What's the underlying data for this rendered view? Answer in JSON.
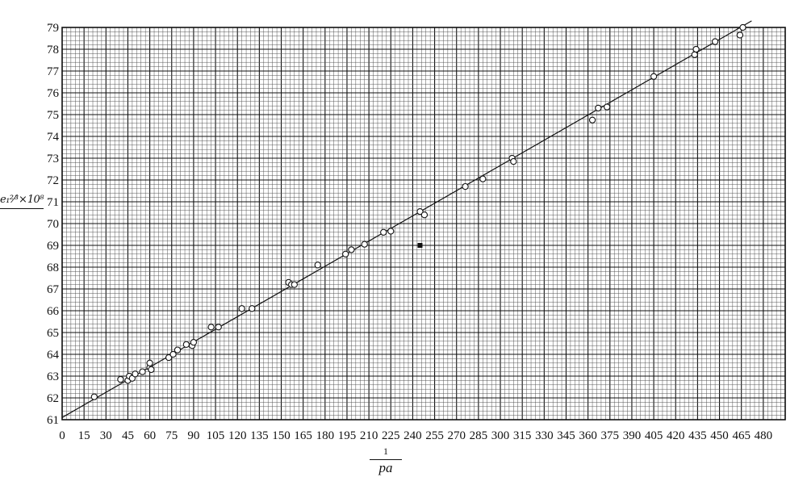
{
  "chart_data": {
    "type": "scatter",
    "title": "",
    "xlabel": {
      "numerator": "1",
      "denominator": "pa"
    },
    "ylabel": "e₁²⁄³ × 10⁸",
    "xlim": [
      0,
      495
    ],
    "ylim": [
      61,
      79
    ],
    "x_ticks": [
      "0",
      "15",
      "30",
      "45",
      "60",
      "75",
      "90",
      "105",
      "120",
      "135",
      "150",
      "165",
      "180",
      "195",
      "210",
      "225",
      "240",
      "255",
      "270",
      "285",
      "300",
      "315",
      "330",
      "345",
      "360",
      "375",
      "390",
      "405",
      "420",
      "435",
      "450",
      "465",
      "480"
    ],
    "y_ticks": [
      "61",
      "62",
      "63",
      "64",
      "65",
      "66",
      "67",
      "68",
      "69",
      "70",
      "71",
      "72",
      "73",
      "74",
      "75",
      "76",
      "77",
      "78",
      "79"
    ],
    "grid": true,
    "minor_grid": {
      "x_step": 3,
      "y_step": 0.2
    },
    "major_grid": {
      "x_step": 15,
      "y_step": 1
    },
    "fit_line": {
      "from": [
        0,
        61.1
      ],
      "to": [
        472,
        79.3
      ]
    },
    "series": [
      {
        "marker": "circle",
        "points": [
          [
            22,
            62.05
          ],
          [
            40,
            62.85
          ],
          [
            45,
            62.8
          ],
          [
            46,
            63.0
          ],
          [
            48,
            62.9
          ],
          [
            50,
            63.1
          ],
          [
            55,
            63.2
          ],
          [
            60,
            63.4
          ],
          [
            60,
            63.6
          ],
          [
            61,
            63.3
          ],
          [
            73,
            63.85
          ],
          [
            76,
            64.0
          ],
          [
            79,
            64.2
          ],
          [
            85,
            64.45
          ],
          [
            89,
            64.4
          ],
          [
            90,
            64.55
          ],
          [
            102,
            65.25
          ],
          [
            107,
            65.25
          ],
          [
            123,
            66.1
          ],
          [
            130,
            66.1
          ],
          [
            155,
            67.3
          ],
          [
            157,
            67.2
          ],
          [
            159,
            67.2
          ],
          [
            175,
            68.1
          ],
          [
            194,
            68.6
          ],
          [
            198,
            68.8
          ],
          [
            207,
            69.05
          ],
          [
            220,
            69.6
          ],
          [
            225,
            69.65
          ],
          [
            245,
            70.55
          ],
          [
            248,
            70.4
          ],
          [
            276,
            71.7
          ],
          [
            288,
            72.05
          ],
          [
            308,
            73.0
          ],
          [
            309,
            72.85
          ],
          [
            363,
            74.75
          ],
          [
            367,
            75.3
          ],
          [
            373,
            75.35
          ],
          [
            405,
            76.75
          ],
          [
            433,
            77.75
          ],
          [
            434,
            78.0
          ],
          [
            447,
            78.35
          ],
          [
            464,
            78.65
          ],
          [
            466,
            79.0
          ]
        ]
      },
      {
        "marker": "filled-square",
        "points": [
          [
            245,
            69.0
          ]
        ]
      }
    ],
    "colors": {
      "ink": "#111111",
      "grid": "#555555",
      "background": "#ffffff"
    }
  }
}
